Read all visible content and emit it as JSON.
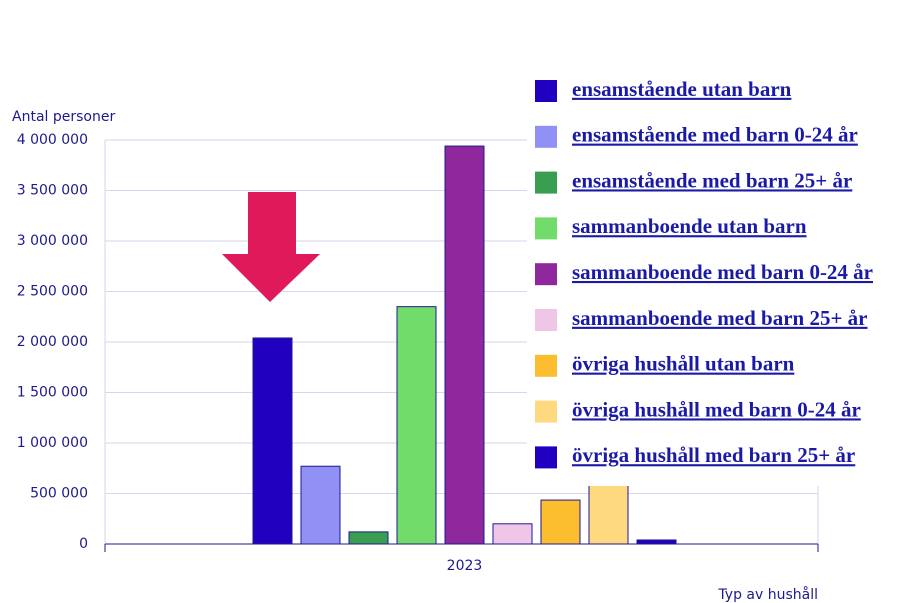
{
  "chart_data": {
    "type": "bar",
    "y_axis_label": "Antal personer",
    "x_axis_label": "Typ av hushåll",
    "categories": [
      "2023"
    ],
    "series": [
      {
        "name": "ensamstående utan barn",
        "color": "#2200c0",
        "values": [
          2040000
        ]
      },
      {
        "name": "ensamstående med barn 0-24 år",
        "color": "#9191f5",
        "values": [
          770000
        ]
      },
      {
        "name": "ensamstående med barn 25+ år",
        "color": "#3a9e50",
        "values": [
          120000
        ]
      },
      {
        "name": "sammanboende utan barn",
        "color": "#72dc6a",
        "values": [
          2350000
        ]
      },
      {
        "name": "sammanboende med barn 0-24 år",
        "color": "#8e289c",
        "values": [
          3940000
        ]
      },
      {
        "name": "sammanboende med barn 25+ år",
        "color": "#f0c6e8",
        "values": [
          200000
        ]
      },
      {
        "name": "övriga hushåll utan barn",
        "color": "#fcbe2e",
        "values": [
          435000
        ]
      },
      {
        "name": "övriga hushåll med barn 0-24 år",
        "color": "#ffd980",
        "values": [
          590000
        ]
      },
      {
        "name": "övriga hushåll med barn 25+ år",
        "color": "#2200c0",
        "values": [
          40000
        ]
      }
    ],
    "ylim": [
      0,
      4000000
    ],
    "yticks": [
      {
        "value": 0,
        "label": "0"
      },
      {
        "value": 500000,
        "label": "500 000"
      },
      {
        "value": 1000000,
        "label": "1 000 000"
      },
      {
        "value": 1500000,
        "label": "1 500 000"
      },
      {
        "value": 2000000,
        "label": "2 000 000"
      },
      {
        "value": 2500000,
        "label": "2 500 000"
      },
      {
        "value": 3000000,
        "label": "3 000 000"
      },
      {
        "value": 3500000,
        "label": "3 500 000"
      },
      {
        "value": 4000000,
        "label": "4 000 000"
      }
    ],
    "grid": true
  }
}
